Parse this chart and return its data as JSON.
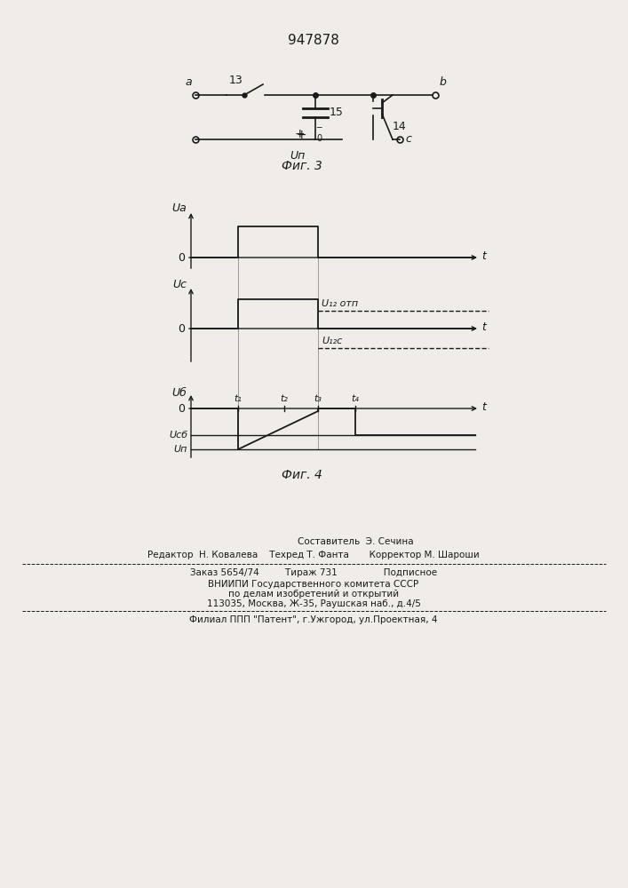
{
  "title": "947878",
  "fig3_label": "Фиг. 3",
  "fig4_label": "Фиг. 4",
  "footer_line1a": "Составитель  Э. Сечина",
  "footer_line1b": "Редактор  Н. Ковалева    Техред Т. Фанта       Корректор М. Шароши",
  "footer_line2": "Заказ 5654/74         Тираж 731                Подписное",
  "footer_line3": "ВНИИПИ Государственного комитета СССР",
  "footer_line4": "по делам изобретений и открытий",
  "footer_line5": "113035, Москва, Ж-35, Раушская наб., д.4/5",
  "footer_line6": "Филиал ППП \"Патент\", г.Ужгород, ул.Проектная, 4",
  "bg_color": "#f0ede8",
  "line_color": "#1a1a1a"
}
